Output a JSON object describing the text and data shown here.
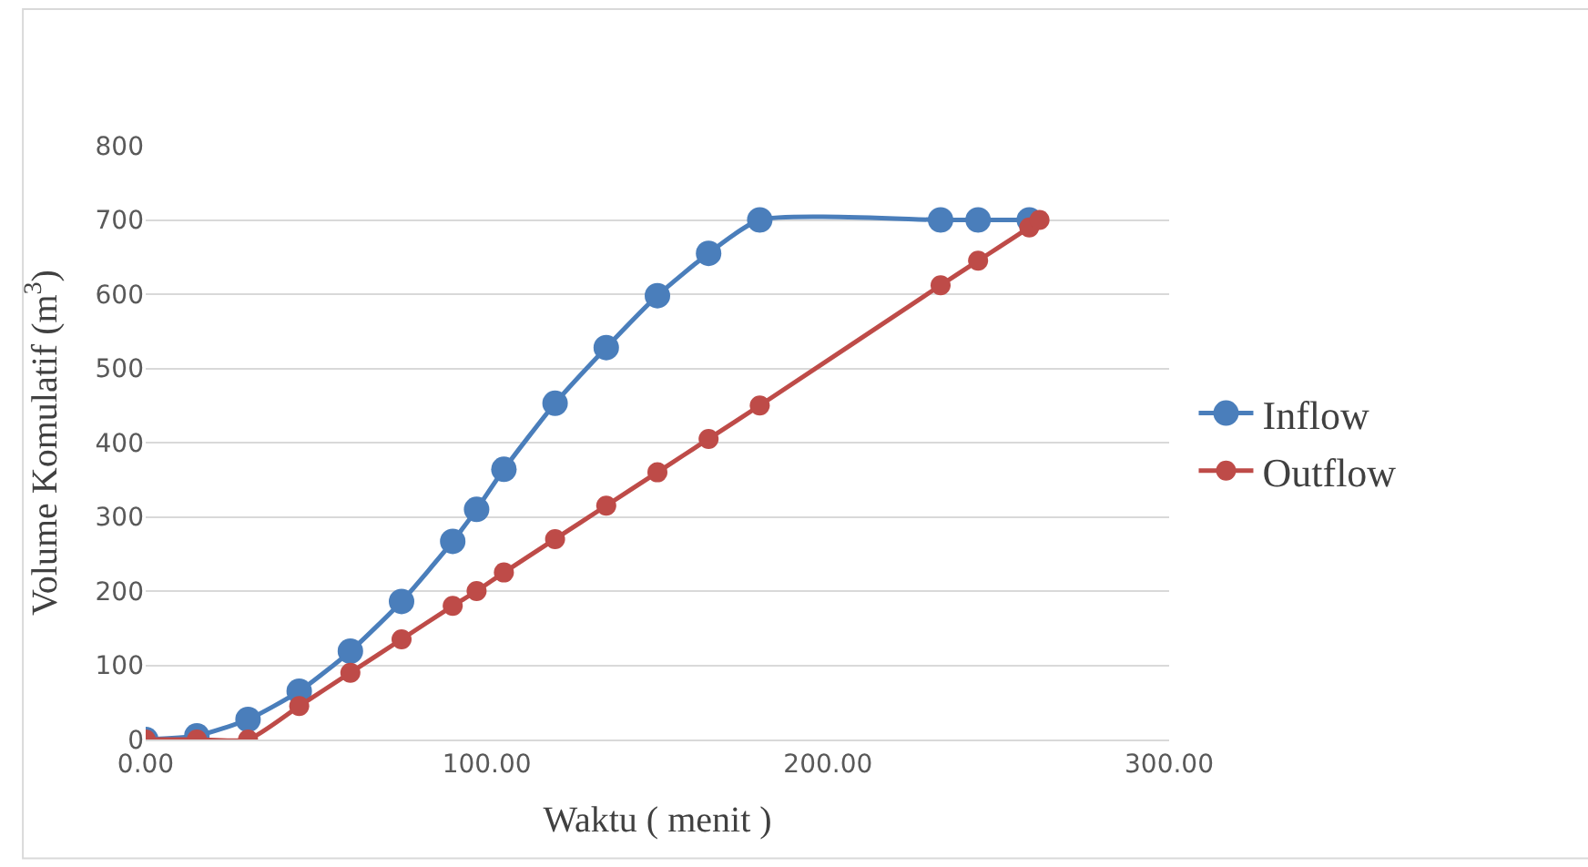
{
  "chart_data": {
    "type": "line",
    "xlabel": "Waktu ( menit )",
    "ylabel": "Volume Komulatif (m$^{3}$)",
    "xlim": [
      0,
      300
    ],
    "xticks": [
      {
        "value": 0,
        "label": "0.00"
      },
      {
        "value": 100,
        "label": "100.00"
      },
      {
        "value": 200,
        "label": "200.00"
      },
      {
        "value": 300,
        "label": "300.00"
      }
    ],
    "ylim": [
      0,
      800
    ],
    "yticks": [
      0,
      100,
      200,
      300,
      400,
      500,
      600,
      700,
      800
    ],
    "grid": "y",
    "legend": "right",
    "marker": "circle",
    "line_style": "solid",
    "series": [
      {
        "name": "Inflow",
        "color": "#4a7ebb",
        "x": [
          0,
          15,
          30,
          45,
          60,
          75,
          90,
          97,
          105,
          120,
          135,
          150,
          165,
          180,
          233,
          244,
          259
        ],
        "values": [
          0,
          5,
          27,
          65,
          119,
          186,
          267,
          310,
          364,
          453,
          528,
          598,
          655,
          700,
          700,
          700,
          700
        ]
      },
      {
        "name": "Outflow",
        "color": "#be4b48",
        "x": [
          0,
          15,
          30,
          45,
          60,
          75,
          90,
          97,
          105,
          120,
          135,
          150,
          165,
          180,
          233,
          244,
          259,
          262
        ],
        "values": [
          0,
          0,
          0,
          45,
          90,
          135,
          180,
          200,
          225,
          270,
          315,
          360,
          405,
          450,
          612,
          645,
          690,
          700
        ]
      }
    ]
  }
}
